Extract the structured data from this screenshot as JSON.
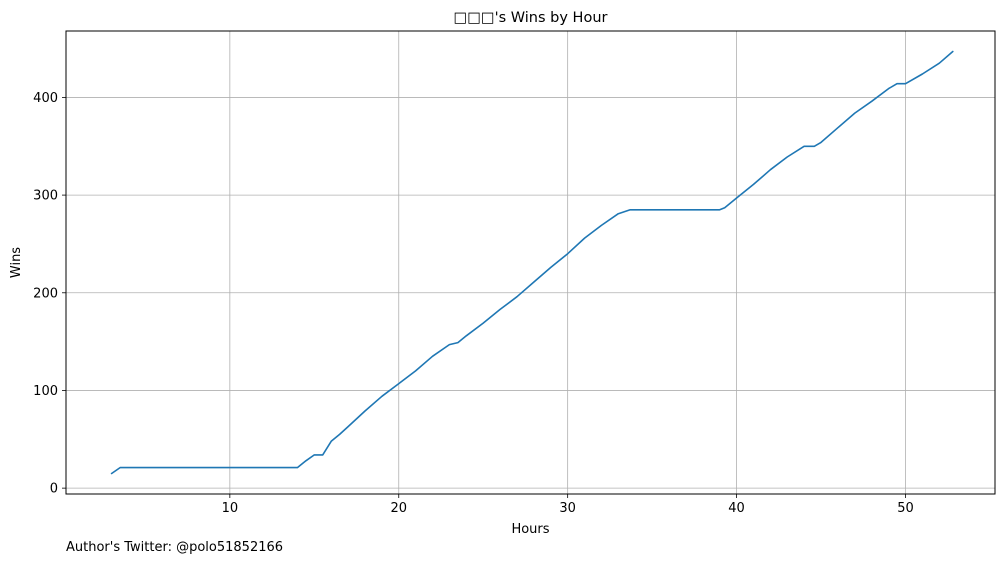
{
  "chart_data": {
    "type": "line",
    "title": "□□□'s Wins by Hour",
    "xlabel": "Hours",
    "ylabel": "Wins",
    "xlim": [
      0.3,
      55.3
    ],
    "ylim": [
      -6,
      468
    ],
    "grid": true,
    "x_ticks": [
      10,
      20,
      30,
      40,
      50
    ],
    "x_tick_labels": [
      "10",
      "20",
      "30",
      "40",
      "50"
    ],
    "y_ticks": [
      0,
      100,
      200,
      300,
      400
    ],
    "y_tick_labels": [
      "0",
      "100",
      "200",
      "300",
      "400"
    ],
    "series": [
      {
        "color": "#1f77b4",
        "x": [
          3.0,
          3.5,
          4.0,
          6.0,
          8.0,
          10.0,
          12.0,
          14.0,
          14.5,
          15.0,
          15.5,
          16.0,
          16.5,
          17.0,
          18.0,
          19.0,
          20.0,
          21.0,
          22.0,
          23.0,
          23.5,
          24.0,
          25.0,
          26.0,
          27.0,
          28.0,
          29.0,
          30.0,
          31.0,
          32.0,
          33.0,
          33.7,
          34.0,
          36.0,
          38.0,
          39.0,
          39.3,
          40.0,
          41.0,
          42.0,
          43.0,
          44.0,
          44.6,
          45.0,
          46.0,
          47.0,
          48.0,
          49.0,
          49.5,
          50.0,
          51.0,
          52.0,
          52.8
        ],
        "y": [
          15,
          21,
          21,
          21,
          21,
          21,
          21,
          21,
          28,
          34,
          34,
          48,
          55,
          63,
          79,
          94,
          107,
          120,
          135,
          147,
          149,
          156,
          169,
          183,
          196,
          211,
          226,
          240,
          256,
          269,
          281,
          285,
          285,
          285,
          285,
          285,
          287,
          297,
          311,
          326,
          339,
          350,
          350,
          354,
          369,
          384,
          396,
          409,
          414,
          414,
          424,
          435,
          447
        ]
      }
    ]
  },
  "footer": {
    "text": "Author's Twitter: @polo51852166"
  }
}
